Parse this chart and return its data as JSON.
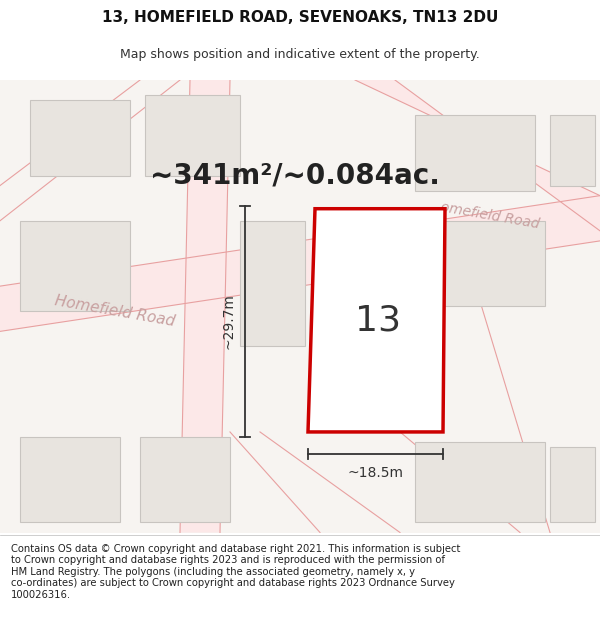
{
  "title_line1": "13, HOMEFIELD ROAD, SEVENOAKS, TN13 2DU",
  "title_line2": "Map shows position and indicative extent of the property.",
  "area_text": "~341m²/~0.084ac.",
  "dim_vertical": "~29.7m",
  "dim_horizontal": "~18.5m",
  "property_label": "13",
  "road_name1": "Homefield Road",
  "road_name2": "omefield Road",
  "copyright_text": "Contains OS data © Crown copyright and database right 2021. This information is subject\nto Crown copyright and database rights 2023 and is reproduced with the permission of\nHM Land Registry. The polygons (including the associated geometry, namely x, y\nco-ordinates) are subject to Crown copyright and database rights 2023 Ordnance Survey\n100026316.",
  "map_bg": "#f7f4f1",
  "property_fill": "#ffffff",
  "property_edge": "#cc0000",
  "road_fill": "#fce8e8",
  "road_edge": "#e8a0a0",
  "building_fill": "#e8e4df",
  "building_edge": "#c8c4c0",
  "dim_color": "#333333",
  "road_text_color": "#c8a0a0",
  "title_bg": "#ffffff",
  "footer_bg": "#ffffff",
  "area_text_color": "#222222"
}
